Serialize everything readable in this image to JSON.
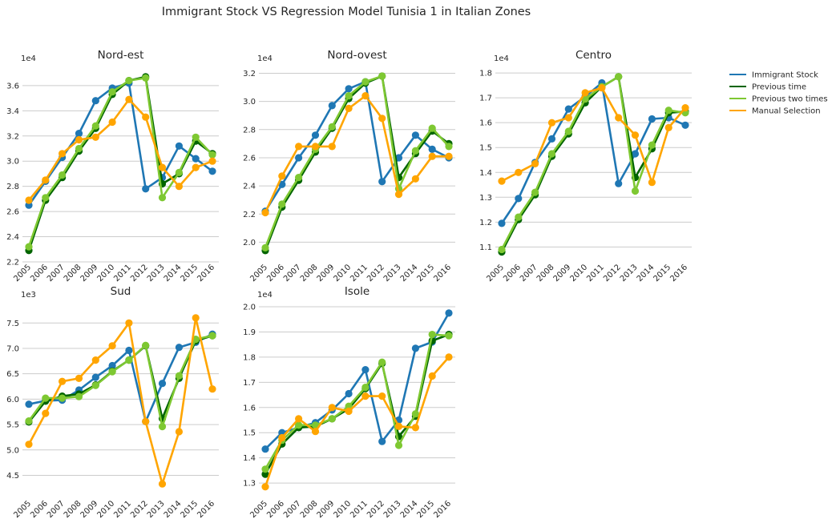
{
  "figure": {
    "title": "Immigrant Stock VS Regression Model Tunisia 1 in Italian Zones"
  },
  "legend": {
    "placement": "upper-right",
    "items": [
      {
        "label": "Immigrant Stock",
        "color": "#1f77b4"
      },
      {
        "label": "Previous time",
        "color": "#006400"
      },
      {
        "label": "Previous two times",
        "color": "#7ec832"
      },
      {
        "label": "Manual Selection",
        "color": "#ffa500"
      }
    ]
  },
  "chart_data": [
    {
      "type": "line",
      "title": "Nord-est",
      "multiplier": "1e4",
      "categories": [
        "2005",
        "2006",
        "2007",
        "2008",
        "2009",
        "2010",
        "2011",
        "2012",
        "2013",
        "2014",
        "2015",
        "2016"
      ],
      "ylim": [
        2.2,
        3.72
      ],
      "yticks": [
        "2.2",
        "2.4",
        "2.6",
        "2.8",
        "3.0",
        "3.2",
        "3.4",
        "3.6"
      ],
      "grid": true,
      "series": [
        {
          "name": "Immigrant Stock",
          "values": [
            2.65,
            2.84,
            3.03,
            3.22,
            3.48,
            3.58,
            3.62,
            2.78,
            2.87,
            3.12,
            3.02,
            2.92
          ]
        },
        {
          "name": "Previous time",
          "values": [
            2.29,
            2.69,
            2.87,
            3.08,
            3.26,
            3.53,
            3.64,
            3.67,
            2.82,
            2.9,
            3.16,
            3.06
          ]
        },
        {
          "name": "Previous two times",
          "values": [
            2.32,
            2.71,
            2.89,
            3.1,
            3.28,
            3.55,
            3.64,
            3.66,
            2.71,
            2.91,
            3.19,
            3.05
          ]
        },
        {
          "name": "Manual Selection",
          "values": [
            2.69,
            2.85,
            3.06,
            3.17,
            3.19,
            3.31,
            3.49,
            3.35,
            2.95,
            2.8,
            2.95,
            3.0
          ]
        }
      ]
    },
    {
      "type": "line",
      "title": "Nord-ovest",
      "multiplier": "1e4",
      "categories": [
        "2005",
        "2006",
        "2007",
        "2008",
        "2009",
        "2010",
        "2011",
        "2012",
        "2013",
        "2014",
        "2015",
        "2016"
      ],
      "ylim": [
        1.86,
        3.22
      ],
      "yticks": [
        "2.0",
        "2.2",
        "2.4",
        "2.6",
        "2.8",
        "3.0",
        "3.2"
      ],
      "grid": true,
      "series": [
        {
          "name": "Immigrant Stock",
          "values": [
            2.22,
            2.41,
            2.6,
            2.76,
            2.97,
            3.09,
            3.14,
            2.43,
            2.6,
            2.76,
            2.66,
            2.6
          ]
        },
        {
          "name": "Previous time",
          "values": [
            1.94,
            2.25,
            2.44,
            2.64,
            2.81,
            3.02,
            3.13,
            3.18,
            2.46,
            2.63,
            2.79,
            2.7
          ]
        },
        {
          "name": "Previous two times",
          "values": [
            1.96,
            2.27,
            2.46,
            2.66,
            2.82,
            3.04,
            3.14,
            3.18,
            2.38,
            2.65,
            2.81,
            2.68
          ]
        },
        {
          "name": "Manual Selection",
          "values": [
            2.21,
            2.47,
            2.68,
            2.68,
            2.68,
            2.95,
            3.04,
            2.88,
            2.34,
            2.45,
            2.61,
            2.61
          ]
        }
      ]
    },
    {
      "type": "line",
      "title": "Centro",
      "multiplier": "1e4",
      "categories": [
        "2005",
        "2006",
        "2007",
        "2008",
        "2009",
        "2010",
        "2011",
        "2012",
        "2013",
        "2014",
        "2015",
        "2016"
      ],
      "ylim": [
        1.04,
        1.81
      ],
      "yticks": [
        "1.1",
        "1.2",
        "1.3",
        "1.4",
        "1.5",
        "1.6",
        "1.7",
        "1.8"
      ],
      "grid": true,
      "series": [
        {
          "name": "Immigrant Stock",
          "values": [
            1.195,
            1.295,
            1.44,
            1.535,
            1.655,
            1.705,
            1.76,
            1.355,
            1.475,
            1.615,
            1.62,
            1.59
          ]
        },
        {
          "name": "Previous time",
          "values": [
            1.08,
            1.21,
            1.31,
            1.465,
            1.555,
            1.68,
            1.745,
            1.785,
            1.38,
            1.495,
            1.64,
            1.645
          ]
        },
        {
          "name": "Previous two times",
          "values": [
            1.09,
            1.22,
            1.32,
            1.475,
            1.565,
            1.695,
            1.745,
            1.785,
            1.325,
            1.51,
            1.65,
            1.64
          ]
        },
        {
          "name": "Manual Selection",
          "values": [
            1.365,
            1.4,
            1.435,
            1.6,
            1.62,
            1.72,
            1.74,
            1.62,
            1.55,
            1.36,
            1.58,
            1.66
          ]
        }
      ]
    },
    {
      "type": "line",
      "title": "Sud",
      "multiplier": "1e3",
      "categories": [
        "2005",
        "2006",
        "2007",
        "2008",
        "2009",
        "2010",
        "2011",
        "2012",
        "2013",
        "2014",
        "2015",
        "2016"
      ],
      "ylim": [
        4.05,
        7.82
      ],
      "yticks": [
        "4.5",
        "5.0",
        "5.5",
        "6.0",
        "6.5",
        "7.0",
        "7.5"
      ],
      "grid": true,
      "series": [
        {
          "name": "Immigrant Stock",
          "values": [
            5.9,
            5.97,
            5.98,
            6.18,
            6.43,
            6.66,
            6.96,
            5.56,
            6.31,
            7.02,
            7.12,
            7.28
          ]
        },
        {
          "name": "Previous time",
          "values": [
            5.55,
            5.96,
            6.06,
            6.1,
            6.28,
            6.55,
            6.77,
            7.05,
            5.62,
            6.41,
            7.15,
            7.25
          ]
        },
        {
          "name": "Previous two times",
          "values": [
            5.57,
            6.02,
            6.02,
            6.05,
            6.27,
            6.54,
            6.77,
            7.06,
            5.46,
            6.46,
            7.18,
            7.25
          ]
        },
        {
          "name": "Manual Selection",
          "values": [
            5.11,
            5.72,
            6.35,
            6.41,
            6.77,
            7.05,
            7.5,
            5.56,
            4.33,
            5.36,
            7.6,
            6.2
          ]
        }
      ]
    },
    {
      "type": "line",
      "title": "Isole",
      "multiplier": "1e4",
      "categories": [
        "2005",
        "2006",
        "2007",
        "2008",
        "2009",
        "2010",
        "2011",
        "2012",
        "2013",
        "2014",
        "2015",
        "2016"
      ],
      "ylim": [
        1.24,
        2.0
      ],
      "yticks": [
        "1.3",
        "1.4",
        "1.5",
        "1.6",
        "1.7",
        "1.8",
        "1.9",
        "2.0"
      ],
      "grid": true,
      "series": [
        {
          "name": "Immigrant Stock",
          "values": [
            1.435,
            1.5,
            1.52,
            1.54,
            1.59,
            1.655,
            1.75,
            1.465,
            1.55,
            1.835,
            1.86,
            1.975
          ]
        },
        {
          "name": "Previous time",
          "values": [
            1.335,
            1.455,
            1.52,
            1.525,
            1.555,
            1.595,
            1.675,
            1.775,
            1.485,
            1.565,
            1.865,
            1.89
          ]
        },
        {
          "name": "Previous two times",
          "values": [
            1.355,
            1.47,
            1.53,
            1.53,
            1.555,
            1.605,
            1.68,
            1.78,
            1.45,
            1.575,
            1.89,
            1.885
          ]
        },
        {
          "name": "Manual Selection",
          "values": [
            1.285,
            1.48,
            1.555,
            1.505,
            1.6,
            1.585,
            1.645,
            1.645,
            1.525,
            1.52,
            1.725,
            1.8
          ]
        }
      ]
    }
  ]
}
